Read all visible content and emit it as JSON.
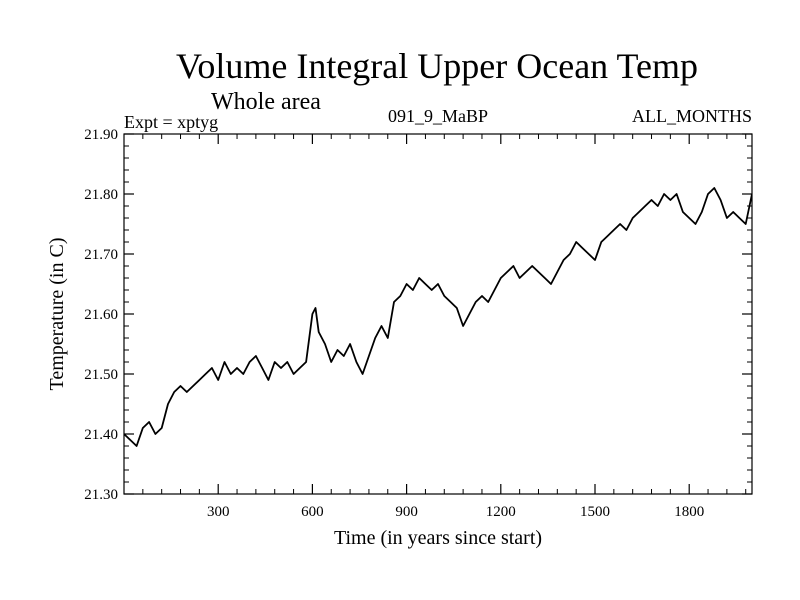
{
  "chart_data": {
    "type": "line",
    "title": "Volume Integral Upper Ocean Temp",
    "subtitle": "Whole area",
    "left_label": "Expt = xptyg",
    "center_label": "091_9_MaBP",
    "right_label": "ALL_MONTHS",
    "xlabel": "Time (in years since start)",
    "ylabel": "Temperature (in C)",
    "xlim": [
      0,
      2000
    ],
    "ylim": [
      21.3,
      21.9
    ],
    "x_ticks": [
      300,
      600,
      900,
      1200,
      1500,
      1800
    ],
    "x_tick_labels": [
      "300",
      "600",
      "900",
      "1200",
      "1500",
      "1800"
    ],
    "y_ticks": [
      21.3,
      21.4,
      21.5,
      21.6,
      21.7,
      21.8,
      21.9
    ],
    "y_tick_labels": [
      "21.30",
      "21.40",
      "21.50",
      "21.60",
      "21.70",
      "21.80",
      "21.90"
    ],
    "grid": false,
    "series": [
      {
        "color": "#000000",
        "x": [
          0,
          20,
          40,
          60,
          80,
          100,
          120,
          140,
          160,
          180,
          200,
          220,
          240,
          260,
          280,
          300,
          320,
          340,
          360,
          380,
          400,
          420,
          440,
          460,
          480,
          500,
          520,
          540,
          560,
          580,
          600,
          610,
          620,
          640,
          660,
          680,
          700,
          720,
          740,
          760,
          780,
          800,
          820,
          840,
          860,
          880,
          900,
          920,
          940,
          960,
          980,
          1000,
          1020,
          1040,
          1060,
          1080,
          1100,
          1120,
          1140,
          1160,
          1180,
          1200,
          1220,
          1240,
          1260,
          1280,
          1300,
          1320,
          1340,
          1360,
          1380,
          1400,
          1420,
          1440,
          1460,
          1480,
          1500,
          1520,
          1540,
          1560,
          1580,
          1600,
          1620,
          1640,
          1660,
          1680,
          1700,
          1720,
          1740,
          1760,
          1780,
          1800,
          1820,
          1840,
          1860,
          1880,
          1900,
          1920,
          1940,
          1960,
          1980,
          2000
        ],
        "values": [
          21.4,
          21.39,
          21.38,
          21.41,
          21.42,
          21.4,
          21.41,
          21.45,
          21.47,
          21.48,
          21.47,
          21.48,
          21.49,
          21.5,
          21.51,
          21.49,
          21.52,
          21.5,
          21.51,
          21.5,
          21.52,
          21.53,
          21.51,
          21.49,
          21.52,
          21.51,
          21.52,
          21.5,
          21.51,
          21.52,
          21.6,
          21.61,
          21.57,
          21.55,
          21.52,
          21.54,
          21.53,
          21.55,
          21.52,
          21.5,
          21.53,
          21.56,
          21.58,
          21.56,
          21.62,
          21.63,
          21.65,
          21.64,
          21.66,
          21.65,
          21.64,
          21.65,
          21.63,
          21.62,
          21.61,
          21.58,
          21.6,
          21.62,
          21.63,
          21.62,
          21.64,
          21.66,
          21.67,
          21.68,
          21.66,
          21.67,
          21.68,
          21.67,
          21.66,
          21.65,
          21.67,
          21.69,
          21.7,
          21.72,
          21.71,
          21.7,
          21.69,
          21.72,
          21.73,
          21.74,
          21.75,
          21.74,
          21.76,
          21.77,
          21.78,
          21.79,
          21.78,
          21.8,
          21.79,
          21.8,
          21.77,
          21.76,
          21.75,
          21.77,
          21.8,
          21.81,
          21.79,
          21.76,
          21.77,
          21.76,
          21.75,
          21.8
        ]
      }
    ]
  }
}
